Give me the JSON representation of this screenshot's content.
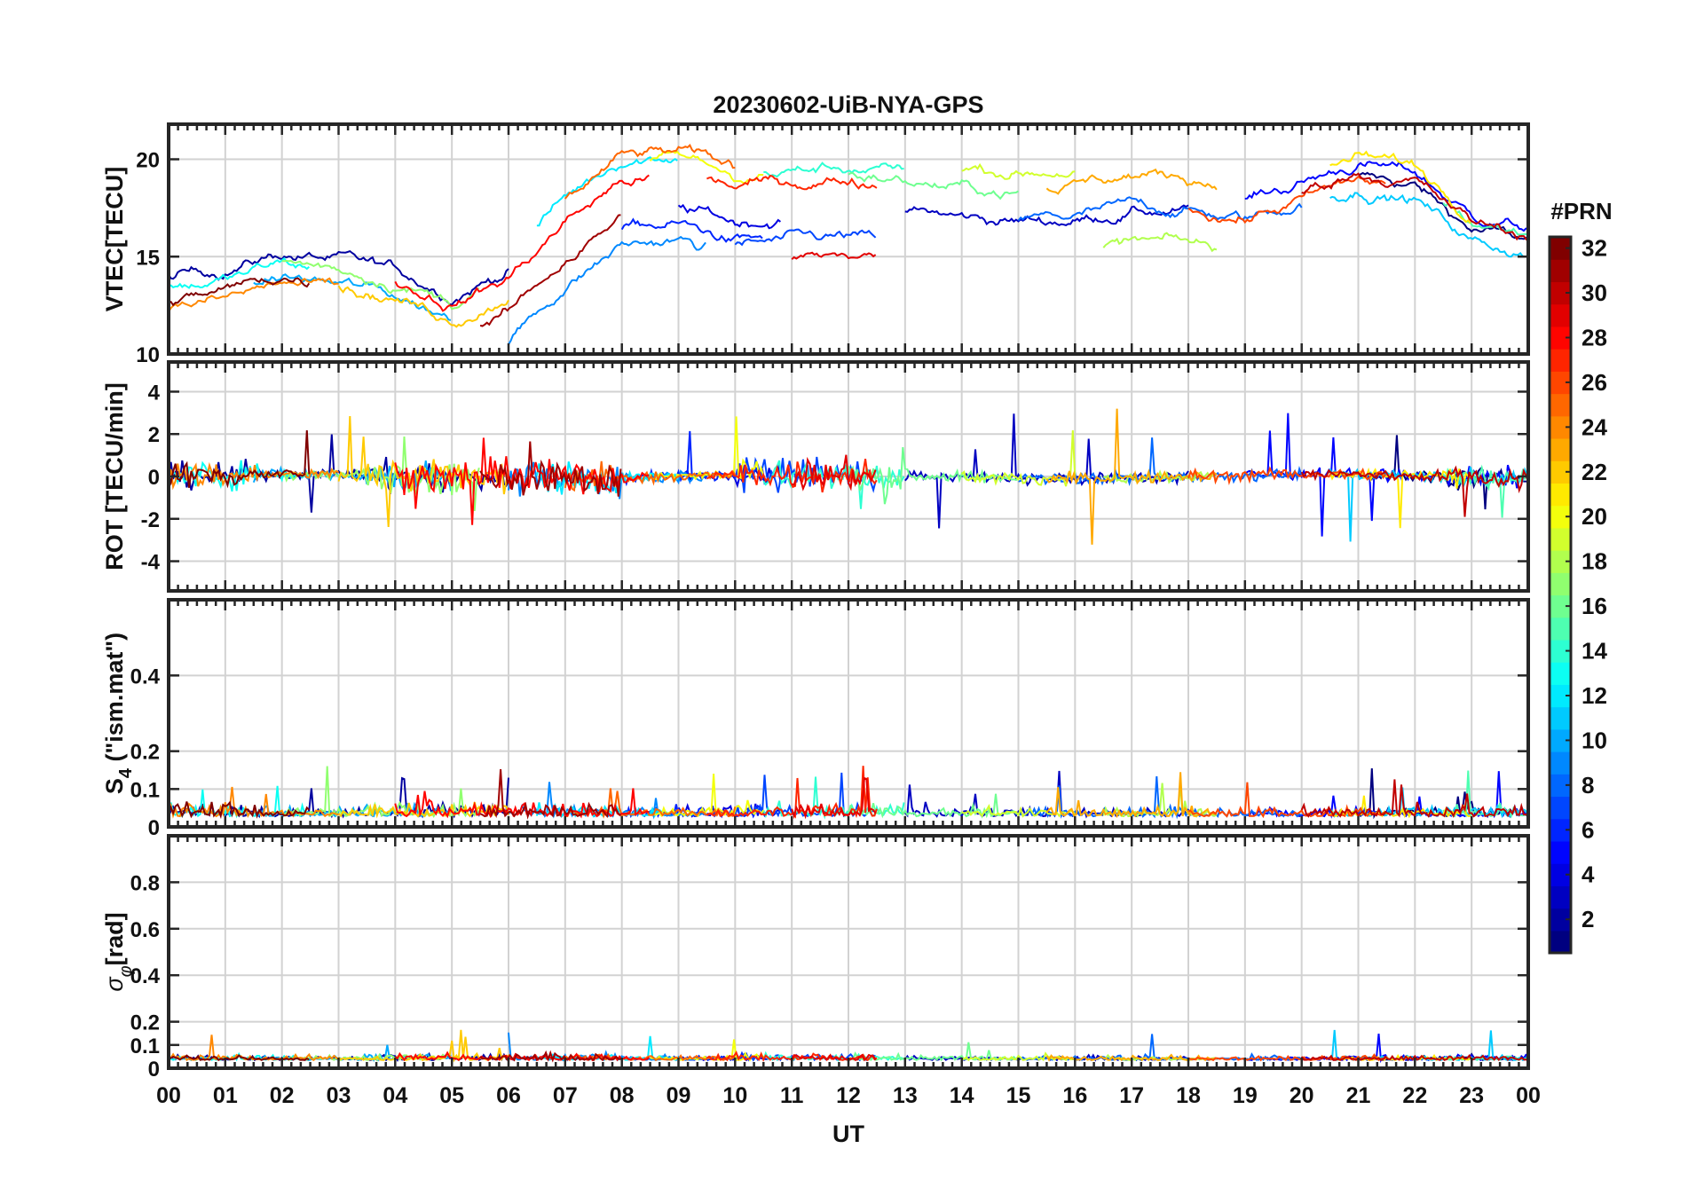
{
  "chart_data": {
    "type": "line",
    "title": "20230602-UiB-NYA-GPS",
    "xlabel": "UT",
    "x_range": [
      0,
      24
    ],
    "x_ticks": [
      "00",
      "01",
      "02",
      "03",
      "04",
      "05",
      "06",
      "07",
      "08",
      "09",
      "10",
      "11",
      "12",
      "13",
      "14",
      "15",
      "16",
      "17",
      "18",
      "19",
      "20",
      "21",
      "22",
      "23",
      "00"
    ],
    "panels": [
      {
        "id": "vtec",
        "ylabel": "VTEC[TECU]",
        "ylim": [
          10,
          21.8
        ],
        "y_ticks": [
          10,
          15,
          20
        ],
        "y_tick_labels": [
          "10",
          "15",
          "20"
        ],
        "baseline": [
          [
            0,
            13.2
          ],
          [
            1,
            13.6
          ],
          [
            2,
            14.4
          ],
          [
            3,
            14.0
          ],
          [
            4,
            13.4
          ],
          [
            5,
            12.3
          ],
          [
            6,
            13.6
          ],
          [
            7,
            16.5
          ],
          [
            8,
            18.6
          ],
          [
            9,
            18.8
          ],
          [
            10,
            18.0
          ],
          [
            11,
            18.2
          ],
          [
            12,
            18.4
          ],
          [
            13,
            18.0
          ],
          [
            14,
            17.6
          ],
          [
            15,
            17.4
          ],
          [
            16,
            17.5
          ],
          [
            17,
            18.0
          ],
          [
            18,
            17.9
          ],
          [
            19,
            17.4
          ],
          [
            20,
            18.3
          ],
          [
            21,
            19.3
          ],
          [
            22,
            18.8
          ],
          [
            23,
            16.6
          ],
          [
            24,
            16.0
          ]
        ]
      },
      {
        "id": "rot",
        "ylabel": "ROT [TECU/min]",
        "ylim": [
          -5.4,
          5.4
        ],
        "y_ticks": [
          -4,
          -2,
          0,
          2,
          4
        ],
        "y_tick_labels": [
          "-4",
          "-2",
          "0",
          "2",
          "4"
        ]
      },
      {
        "id": "s4",
        "ylabel": "S4 (\"ism.mat\")",
        "ylabel_main": "S",
        "ylabel_sub": "4",
        "ylabel_rest": "  (\"ism.mat\")",
        "ylim": [
          0,
          0.6
        ],
        "y_ticks": [
          0,
          0.1,
          0.2,
          0.4
        ],
        "y_tick_labels": [
          "0",
          "0.1",
          "0.2",
          "0.4"
        ]
      },
      {
        "id": "sigma",
        "ylabel": "σφ[rad]",
        "ylabel_main": "σ",
        "ylabel_sub": "φ",
        "ylabel_rest": "[rad]",
        "ylim": [
          0,
          1.0
        ],
        "y_ticks": [
          0,
          0.1,
          0.2,
          0.4,
          0.6,
          0.8
        ],
        "y_tick_labels": [
          "0",
          "0.1",
          "0.2",
          "0.4",
          "0.6",
          "0.8"
        ]
      }
    ],
    "series": [
      {
        "name": "PRN 01",
        "prn": 1,
        "span": [
          21.0,
          24.0
        ],
        "vtec_offset": -0.2
      },
      {
        "name": "PRN 02",
        "prn": 2,
        "span": [
          0.0,
          6.0
        ],
        "vtec_offset": 0.8
      },
      {
        "name": "PRN 03",
        "prn": 3,
        "span": [
          13.0,
          18.0
        ],
        "vtec_offset": -0.6
      },
      {
        "name": "PRN 04",
        "prn": 4,
        "span": [
          9.0,
          10.8
        ],
        "vtec_offset": -1.2
      },
      {
        "name": "PRN 05",
        "prn": 5,
        "span": [
          19.0,
          24.0
        ],
        "vtec_offset": 0.5
      },
      {
        "name": "PRN 06",
        "prn": 6,
        "span": [
          8.0,
          10.5
        ],
        "vtec_offset": -2.2
      },
      {
        "name": "PRN 07",
        "prn": 7,
        "span": [
          10.0,
          12.5
        ],
        "vtec_offset": -2.5
      },
      {
        "name": "PRN 08",
        "prn": 8,
        "span": [
          15.0,
          20.0
        ],
        "vtec_offset": -0.5
      },
      {
        "name": "PRN 09",
        "prn": 9,
        "span": [
          6.0,
          9.5
        ],
        "vtec_offset": -3.0
      },
      {
        "name": "PRN 10",
        "prn": 10,
        "span": [
          1.5,
          5.0
        ],
        "vtec_offset": -0.4
      },
      {
        "name": "PRN 11",
        "prn": 11,
        "span": [
          20.5,
          24.0
        ],
        "vtec_offset": -0.8
      },
      {
        "name": "PRN 12",
        "prn": 12,
        "span": [
          6.5,
          9.0
        ],
        "vtec_offset": 1.5
      },
      {
        "name": "PRN 13",
        "prn": 13,
        "span": [
          0.0,
          2.5
        ],
        "vtec_offset": 0.2
      },
      {
        "name": "PRN 14",
        "prn": 14,
        "span": [
          10.5,
          13.0
        ],
        "vtec_offset": 1.2
      },
      {
        "name": "PRN 15",
        "prn": 15,
        "span": [
          22.5,
          24.0
        ],
        "vtec_offset": 0.2
      },
      {
        "name": "PRN 16",
        "prn": 16,
        "span": [
          12.0,
          15.0
        ],
        "vtec_offset": 0.9
      },
      {
        "name": "PRN 17",
        "prn": 17,
        "span": [
          2.0,
          5.5
        ],
        "vtec_offset": 0.4
      },
      {
        "name": "PRN 18",
        "prn": 18,
        "span": [
          16.5,
          18.5
        ],
        "vtec_offset": -2.3
      },
      {
        "name": "PRN 19",
        "prn": 19,
        "span": [
          14.0,
          16.0
        ],
        "vtec_offset": 2.0
      },
      {
        "name": "PRN 20",
        "prn": 20,
        "span": [
          8.5,
          10.5
        ],
        "vtec_offset": 1.2
      },
      {
        "name": "PRN 21",
        "prn": 21,
        "span": [
          20.5,
          23.0
        ],
        "vtec_offset": 0.8
      },
      {
        "name": "PRN 22",
        "prn": 22,
        "span": [
          3.0,
          6.0
        ],
        "vtec_offset": -0.5
      },
      {
        "name": "PRN 23",
        "prn": 23,
        "span": [
          15.5,
          18.5
        ],
        "vtec_offset": 1.2
      },
      {
        "name": "PRN 24",
        "prn": 24,
        "span": [
          0.0,
          3.0
        ],
        "vtec_offset": -0.8
      },
      {
        "name": "PRN 25",
        "prn": 25,
        "span": [
          7.0,
          10.0
        ],
        "vtec_offset": 1.5
      },
      {
        "name": "PRN 26",
        "prn": 26,
        "span": [
          18.0,
          21.5
        ],
        "vtec_offset": -0.4
      },
      {
        "name": "PRN 27",
        "prn": 27,
        "span": [
          9.5,
          12.5
        ],
        "vtec_offset": 0.6
      },
      {
        "name": "PRN 28",
        "prn": 28,
        "span": [
          4.0,
          8.5
        ],
        "vtec_offset": 0.3
      },
      {
        "name": "PRN 29",
        "prn": 29,
        "span": [
          11.0,
          12.5
        ],
        "vtec_offset": -3.3
      },
      {
        "name": "PRN 30",
        "prn": 30,
        "span": [
          20.0,
          24.0
        ],
        "vtec_offset": 0.1
      },
      {
        "name": "PRN 31",
        "prn": 31,
        "span": [
          5.5,
          8.0
        ],
        "vtec_offset": -1.6
      },
      {
        "name": "PRN 32",
        "prn": 32,
        "span": [
          0.0,
          2.5
        ],
        "vtec_offset": -0.4
      }
    ],
    "colorbar": {
      "label": "#PRN",
      "range": [
        1,
        32
      ],
      "ticks": [
        2,
        4,
        6,
        8,
        10,
        12,
        14,
        16,
        18,
        20,
        22,
        24,
        26,
        28,
        30,
        32
      ],
      "tick_labels": [
        "2",
        "4",
        "6",
        "8",
        "10",
        "12",
        "14",
        "16",
        "18",
        "20",
        "22",
        "24",
        "26",
        "28",
        "30",
        "32"
      ],
      "colormap": "jet"
    }
  }
}
